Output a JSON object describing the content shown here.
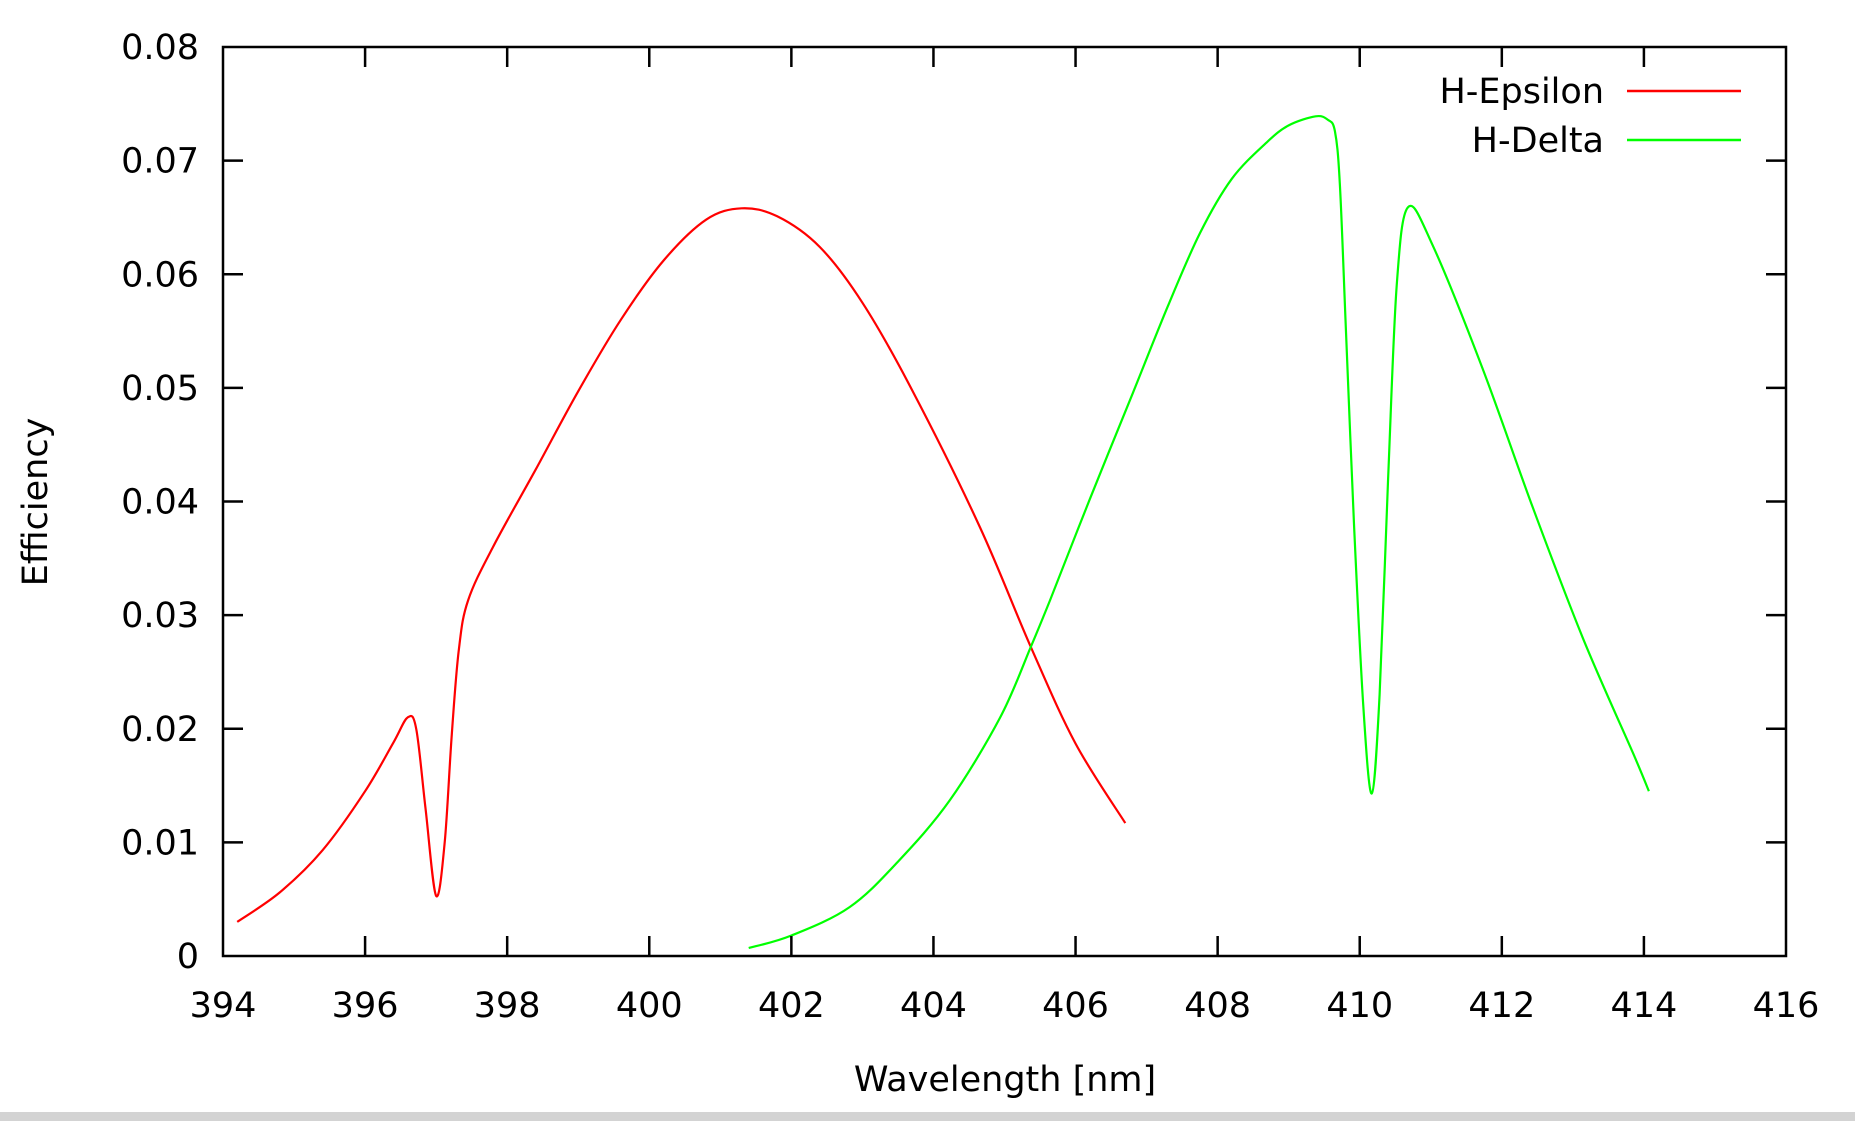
{
  "chart_data": {
    "type": "line",
    "title": "",
    "xlabel": "Wavelength [nm]",
    "ylabel": "Efficiency",
    "xlim": [
      394,
      416
    ],
    "ylim": [
      0,
      0.08
    ],
    "xticks": [
      394,
      396,
      398,
      400,
      402,
      404,
      406,
      408,
      410,
      412,
      414,
      416
    ],
    "yticks": [
      0,
      0.01,
      0.02,
      0.03,
      0.04,
      0.05,
      0.06,
      0.07,
      0.08
    ],
    "ytick_labels": [
      "0",
      "0.01",
      "0.02",
      "0.03",
      "0.04",
      "0.05",
      "0.06",
      "0.07",
      "0.08"
    ],
    "grid": false,
    "legend_position": "top-right",
    "series": [
      {
        "name": "H-Epsilon",
        "color": "#ff0000",
        "x": [
          394.2,
          394.8,
          395.4,
          396.0,
          396.4,
          396.6,
          396.72,
          396.85,
          397.0,
          397.12,
          397.22,
          397.32,
          397.45,
          397.8,
          398.4,
          399.0,
          399.6,
          400.2,
          400.8,
          401.3,
          401.8,
          402.4,
          403.0,
          403.7,
          404.65,
          405.37,
          406.0,
          406.7
        ],
        "y": [
          0.003,
          0.0056,
          0.0093,
          0.0145,
          0.0188,
          0.021,
          0.02,
          0.013,
          0.0053,
          0.01,
          0.0195,
          0.027,
          0.0313,
          0.036,
          0.0428,
          0.0497,
          0.056,
          0.0612,
          0.0648,
          0.0658,
          0.0651,
          0.0624,
          0.0575,
          0.0498,
          0.0378,
          0.0272,
          0.0187,
          0.0117
        ]
      },
      {
        "name": "H-Delta",
        "color": "#00ff00",
        "x": [
          401.4,
          402.0,
          402.82,
          403.5,
          404.23,
          404.94,
          405.37,
          405.64,
          406.2,
          406.81,
          407.3,
          407.75,
          408.2,
          408.69,
          409.0,
          409.38,
          409.55,
          409.65,
          409.72,
          409.8,
          409.92,
          410.05,
          410.17,
          410.28,
          410.4,
          410.52,
          410.68,
          411.03,
          411.73,
          412.44,
          413.14,
          413.85,
          414.07
        ],
        "y": [
          0.0007,
          0.0018,
          0.0043,
          0.0083,
          0.0137,
          0.021,
          0.0272,
          0.0313,
          0.0402,
          0.0496,
          0.0572,
          0.0636,
          0.0684,
          0.0716,
          0.0731,
          0.0739,
          0.0736,
          0.0726,
          0.068,
          0.056,
          0.038,
          0.022,
          0.0143,
          0.023,
          0.042,
          0.059,
          0.0659,
          0.0625,
          0.0517,
          0.0394,
          0.028,
          0.0178,
          0.0145
        ]
      }
    ]
  },
  "legend": {
    "items": [
      {
        "label": "H-Epsilon",
        "color": "#ff0000"
      },
      {
        "label": "H-Delta",
        "color": "#00ff00"
      }
    ]
  },
  "axes": {
    "xlabel": "Wavelength [nm]",
    "ylabel": "Efficiency",
    "frame_color": "#000000"
  }
}
